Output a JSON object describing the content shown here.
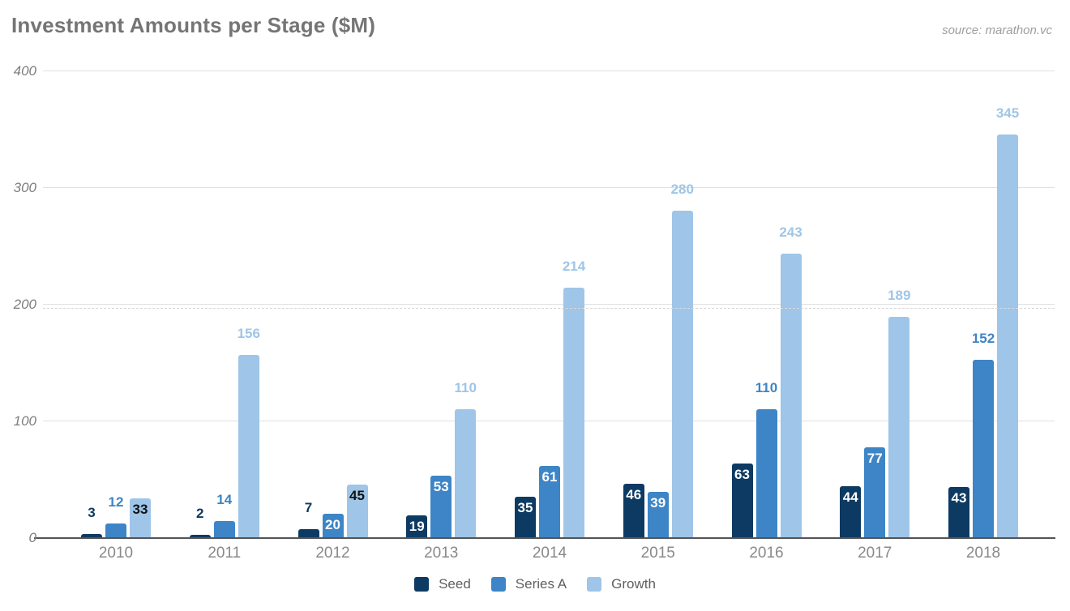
{
  "chart_data": {
    "type": "bar",
    "title": "Investment Amounts per Stage ($M)",
    "source": "source: marathon.vc",
    "xlabel": "",
    "ylabel": "",
    "ylim": [
      0,
      400
    ],
    "y_ticks": [
      0,
      100,
      200,
      300,
      400
    ],
    "grid": true,
    "legend_position": "bottom",
    "categories": [
      "2010",
      "2011",
      "2012",
      "2013",
      "2014",
      "2015",
      "2016",
      "2017",
      "2018"
    ],
    "series": [
      {
        "name": "Seed",
        "color": "#0d3a62",
        "values": [
          3,
          2,
          7,
          19,
          35,
          46,
          63,
          44,
          43
        ],
        "label_placements": [
          "above",
          "above",
          "above",
          "inside",
          "inside",
          "inside",
          "inside",
          "inside",
          "inside"
        ],
        "label_color_above": "#0d3a62",
        "label_color_inside": "#ffffff"
      },
      {
        "name": "Series A",
        "color": "#3d85c6",
        "values": [
          12,
          14,
          20,
          53,
          61,
          39,
          110,
          77,
          152
        ],
        "label_placements": [
          "above",
          "above",
          "inside",
          "inside",
          "inside",
          "inside",
          "above",
          "inside",
          "above"
        ],
        "label_color_above": "#3d85c6",
        "label_color_inside": "#ffffff"
      },
      {
        "name": "Growth",
        "color": "#9fc5e8",
        "values": [
          33,
          156,
          45,
          110,
          214,
          280,
          243,
          189,
          345
        ],
        "label_placements": [
          "inside",
          "above",
          "inside",
          "above",
          "above",
          "above",
          "above",
          "above",
          "above"
        ],
        "label_color_above": "#9fc5e8",
        "label_color_inside": "#111111"
      }
    ]
  }
}
